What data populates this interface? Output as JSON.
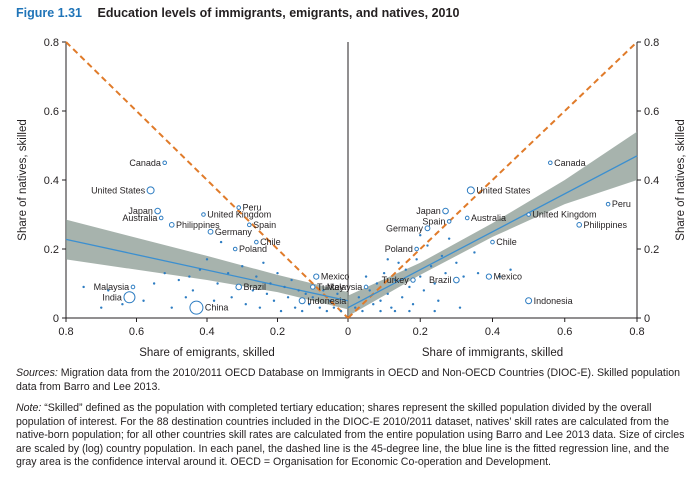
{
  "figure": {
    "label": "Figure 1.31",
    "title": "Education levels of immigrants, emigrants, and natives, 2010",
    "sources_label": "Sources:",
    "sources_text": "Migration data from the 2010/2011 OECD Database on Immigrants in OECD and Non-OECD Countries (DIOC-E). Skilled population data from Barro and Lee 2013.",
    "note_label": "Note:",
    "note_text": "“Skilled” defined as the population with completed tertiary education; shares represent the skilled population divided by the overall population of interest. For the 88 destination countries included in the DIOC-E 2010/2011 dataset, natives’ skill rates are calculated from the native-born population; for all other countries skill rates are calculated from the entire population using Barro and Lee 2013 data. Size of circles are scaled by (log) country population. In each panel, the dashed line is the 45-degree line, the blue line is the fitted regression line, and the gray area is the confidence interval around it. OECD = Organisation for Economic Co-operation and Development."
  },
  "colors": {
    "accent": "#1f74b8",
    "regression": "#3b8fd0",
    "confidence": "#8a9a92",
    "dashed": "#e07b2a",
    "points": "#2e7dc2"
  },
  "chart_data": [
    {
      "type": "scatter",
      "panel": "left",
      "xlabel": "Share of emigrants, skilled",
      "ylabel": "Share of natives, skilled",
      "xlim": [
        0,
        0.8
      ],
      "x_reversed": true,
      "ylim": [
        0,
        0.8
      ],
      "xticks": [
        "0.8",
        "0.6",
        "0.4",
        "0.2",
        "0"
      ],
      "yticks": [
        "0",
        "0.2",
        "0.4",
        "0.6",
        "0.8"
      ],
      "labeled_points": [
        {
          "label": "Canada",
          "x": 0.52,
          "y": 0.45
        },
        {
          "label": "United States",
          "x": 0.56,
          "y": 0.37
        },
        {
          "label": "Japan",
          "x": 0.54,
          "y": 0.31
        },
        {
          "label": "Australia",
          "x": 0.53,
          "y": 0.29
        },
        {
          "label": "Philippines",
          "x": 0.5,
          "y": 0.27
        },
        {
          "label": "Peru",
          "x": 0.31,
          "y": 0.32
        },
        {
          "label": "United Kingdom",
          "x": 0.41,
          "y": 0.3
        },
        {
          "label": "Spain",
          "x": 0.28,
          "y": 0.27
        },
        {
          "label": "Germany",
          "x": 0.39,
          "y": 0.25
        },
        {
          "label": "Chile",
          "x": 0.26,
          "y": 0.22
        },
        {
          "label": "Poland",
          "x": 0.32,
          "y": 0.2
        },
        {
          "label": "Mexico",
          "x": 0.09,
          "y": 0.12
        },
        {
          "label": "Turkey",
          "x": 0.1,
          "y": 0.09
        },
        {
          "label": "Brazil",
          "x": 0.31,
          "y": 0.09
        },
        {
          "label": "Malaysia",
          "x": 0.61,
          "y": 0.09
        },
        {
          "label": "India",
          "x": 0.62,
          "y": 0.06
        },
        {
          "label": "China",
          "x": 0.43,
          "y": 0.03
        },
        {
          "label": "Indonesia",
          "x": 0.13,
          "y": 0.05
        }
      ],
      "unlabeled_points": [
        [
          0.75,
          0.09
        ],
        [
          0.68,
          0.08
        ],
        [
          0.64,
          0.04
        ],
        [
          0.58,
          0.05
        ],
        [
          0.55,
          0.1
        ],
        [
          0.52,
          0.13
        ],
        [
          0.48,
          0.11
        ],
        [
          0.46,
          0.06
        ],
        [
          0.44,
          0.08
        ],
        [
          0.42,
          0.14
        ],
        [
          0.4,
          0.17
        ],
        [
          0.38,
          0.05
        ],
        [
          0.37,
          0.1
        ],
        [
          0.36,
          0.22
        ],
        [
          0.34,
          0.13
        ],
        [
          0.33,
          0.06
        ],
        [
          0.3,
          0.15
        ],
        [
          0.29,
          0.04
        ],
        [
          0.27,
          0.08
        ],
        [
          0.26,
          0.12
        ],
        [
          0.25,
          0.03
        ],
        [
          0.24,
          0.16
        ],
        [
          0.23,
          0.07
        ],
        [
          0.22,
          0.1
        ],
        [
          0.21,
          0.05
        ],
        [
          0.2,
          0.13
        ],
        [
          0.19,
          0.02
        ],
        [
          0.18,
          0.09
        ],
        [
          0.17,
          0.06
        ],
        [
          0.16,
          0.11
        ],
        [
          0.15,
          0.03
        ],
        [
          0.14,
          0.08
        ],
        [
          0.13,
          0.02
        ],
        [
          0.12,
          0.07
        ],
        [
          0.11,
          0.04
        ],
        [
          0.1,
          0.06
        ],
        [
          0.08,
          0.03
        ],
        [
          0.07,
          0.08
        ],
        [
          0.06,
          0.02
        ],
        [
          0.05,
          0.05
        ],
        [
          0.04,
          0.03
        ],
        [
          0.03,
          0.07
        ],
        [
          0.02,
          0.02
        ],
        [
          0.7,
          0.03
        ],
        [
          0.5,
          0.03
        ],
        [
          0.45,
          0.12
        ]
      ],
      "regression": [
        [
          0.8,
          0.228
        ],
        [
          0,
          0.05
        ]
      ],
      "confidence": [
        [
          0.8,
          0.285,
          0.17
        ],
        [
          0.4,
          0.18,
          0.11
        ],
        [
          0.2,
          0.125,
          0.075
        ],
        [
          0,
          0.075,
          0.025
        ]
      ]
    },
    {
      "type": "scatter",
      "panel": "right",
      "xlabel": "Share of immigrants, skilled",
      "ylabel": "Share of natives, skilled",
      "xlim": [
        0,
        0.8
      ],
      "ylim": [
        0,
        0.8
      ],
      "xticks": [
        "0.2",
        "0.4",
        "0.6",
        "0.8"
      ],
      "yticks": [
        "0",
        "0.2",
        "0.4",
        "0.6",
        "0.8"
      ],
      "labeled_points": [
        {
          "label": "Canada",
          "x": 0.56,
          "y": 0.45
        },
        {
          "label": "United States",
          "x": 0.34,
          "y": 0.37
        },
        {
          "label": "Peru",
          "x": 0.72,
          "y": 0.33
        },
        {
          "label": "United Kingdom",
          "x": 0.5,
          "y": 0.3
        },
        {
          "label": "Japan",
          "x": 0.27,
          "y": 0.31
        },
        {
          "label": "Australia",
          "x": 0.33,
          "y": 0.29
        },
        {
          "label": "Spain",
          "x": 0.28,
          "y": 0.28
        },
        {
          "label": "Philippines",
          "x": 0.64,
          "y": 0.27
        },
        {
          "label": "Germany",
          "x": 0.22,
          "y": 0.26
        },
        {
          "label": "Chile",
          "x": 0.4,
          "y": 0.22
        },
        {
          "label": "Poland",
          "x": 0.19,
          "y": 0.2
        },
        {
          "label": "Mexico",
          "x": 0.39,
          "y": 0.12
        },
        {
          "label": "Turkey",
          "x": 0.18,
          "y": 0.11
        },
        {
          "label": "Brazil",
          "x": 0.3,
          "y": 0.11
        },
        {
          "label": "Malaysia",
          "x": 0.05,
          "y": 0.09
        },
        {
          "label": "Indonesia",
          "x": 0.5,
          "y": 0.05
        }
      ],
      "unlabeled_points": [
        [
          0.02,
          0.03
        ],
        [
          0.03,
          0.06
        ],
        [
          0.04,
          0.02
        ],
        [
          0.06,
          0.08
        ],
        [
          0.07,
          0.04
        ],
        [
          0.08,
          0.1
        ],
        [
          0.09,
          0.05
        ],
        [
          0.1,
          0.13
        ],
        [
          0.11,
          0.07
        ],
        [
          0.12,
          0.03
        ],
        [
          0.13,
          0.11
        ],
        [
          0.14,
          0.16
        ],
        [
          0.15,
          0.06
        ],
        [
          0.16,
          0.14
        ],
        [
          0.17,
          0.09
        ],
        [
          0.18,
          0.04
        ],
        [
          0.19,
          0.17
        ],
        [
          0.2,
          0.12
        ],
        [
          0.21,
          0.08
        ],
        [
          0.22,
          0.21
        ],
        [
          0.23,
          0.15
        ],
        [
          0.24,
          0.1
        ],
        [
          0.25,
          0.05
        ],
        [
          0.26,
          0.18
        ],
        [
          0.27,
          0.13
        ],
        [
          0.28,
          0.23
        ],
        [
          0.3,
          0.16
        ],
        [
          0.32,
          0.12
        ],
        [
          0.35,
          0.19
        ],
        [
          0.36,
          0.13
        ],
        [
          0.42,
          0.12
        ],
        [
          0.45,
          0.14
        ],
        [
          0.05,
          0.12
        ],
        [
          0.09,
          0.02
        ],
        [
          0.13,
          0.02
        ],
        [
          0.17,
          0.02
        ],
        [
          0.24,
          0.02
        ],
        [
          0.31,
          0.03
        ],
        [
          0.11,
          0.17
        ],
        [
          0.2,
          0.24
        ]
      ],
      "regression": [
        [
          0,
          0.03
        ],
        [
          0.8,
          0.47
        ]
      ],
      "confidence": [
        [
          0,
          0.065,
          0.005
        ],
        [
          0.2,
          0.16,
          0.125
        ],
        [
          0.4,
          0.275,
          0.235
        ],
        [
          0.6,
          0.4,
          0.33
        ],
        [
          0.8,
          0.54,
          0.4
        ]
      ]
    }
  ]
}
